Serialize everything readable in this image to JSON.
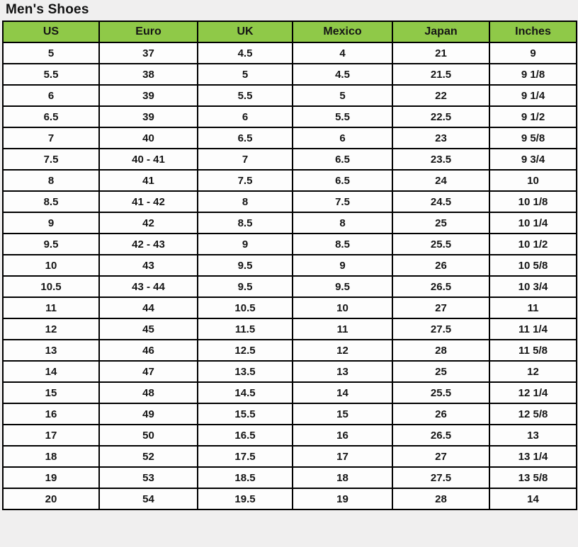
{
  "page": {
    "title": "Men's Shoes",
    "background": "#f0efef"
  },
  "table": {
    "colors": {
      "header_bg": "#8fc948",
      "border": "#000000",
      "cell_bg": "#fdfdfd",
      "text": "#151515"
    },
    "columns": [
      "US",
      "Euro",
      "UK",
      "Mexico",
      "Japan",
      "Inches"
    ],
    "rows": [
      [
        "5",
        "37",
        "4.5",
        "4",
        "21",
        "9"
      ],
      [
        "5.5",
        "38",
        "5",
        "4.5",
        "21.5",
        "9 1/8"
      ],
      [
        "6",
        "39",
        "5.5",
        "5",
        "22",
        "9 1/4"
      ],
      [
        "6.5",
        "39",
        "6",
        "5.5",
        "22.5",
        "9 1/2"
      ],
      [
        "7",
        "40",
        "6.5",
        "6",
        "23",
        "9 5/8"
      ],
      [
        "7.5",
        "40 - 41",
        "7",
        "6.5",
        "23.5",
        "9 3/4"
      ],
      [
        "8",
        "41",
        "7.5",
        "6.5",
        "24",
        "10"
      ],
      [
        "8.5",
        "41 - 42",
        "8",
        "7.5",
        "24.5",
        "10 1/8"
      ],
      [
        "9",
        "42",
        "8.5",
        "8",
        "25",
        "10 1/4"
      ],
      [
        "9.5",
        "42 - 43",
        "9",
        "8.5",
        "25.5",
        "10 1/2"
      ],
      [
        "10",
        "43",
        "9.5",
        "9",
        "26",
        "10 5/8"
      ],
      [
        "10.5",
        "43 - 44",
        "9.5",
        "9.5",
        "26.5",
        "10 3/4"
      ],
      [
        "11",
        "44",
        "10.5",
        "10",
        "27",
        "11"
      ],
      [
        "12",
        "45",
        "11.5",
        "11",
        "27.5",
        "11 1/4"
      ],
      [
        "13",
        "46",
        "12.5",
        "12",
        "28",
        "11 5/8"
      ],
      [
        "14",
        "47",
        "13.5",
        "13",
        "25",
        "12"
      ],
      [
        "15",
        "48",
        "14.5",
        "14",
        "25.5",
        "12 1/4"
      ],
      [
        "16",
        "49",
        "15.5",
        "15",
        "26",
        "12 5/8"
      ],
      [
        "17",
        "50",
        "16.5",
        "16",
        "26.5",
        "13"
      ],
      [
        "18",
        "52",
        "17.5",
        "17",
        "27",
        "13 1/4"
      ],
      [
        "19",
        "53",
        "18.5",
        "18",
        "27.5",
        "13 5/8"
      ],
      [
        "20",
        "54",
        "19.5",
        "19",
        "28",
        "14"
      ]
    ]
  }
}
